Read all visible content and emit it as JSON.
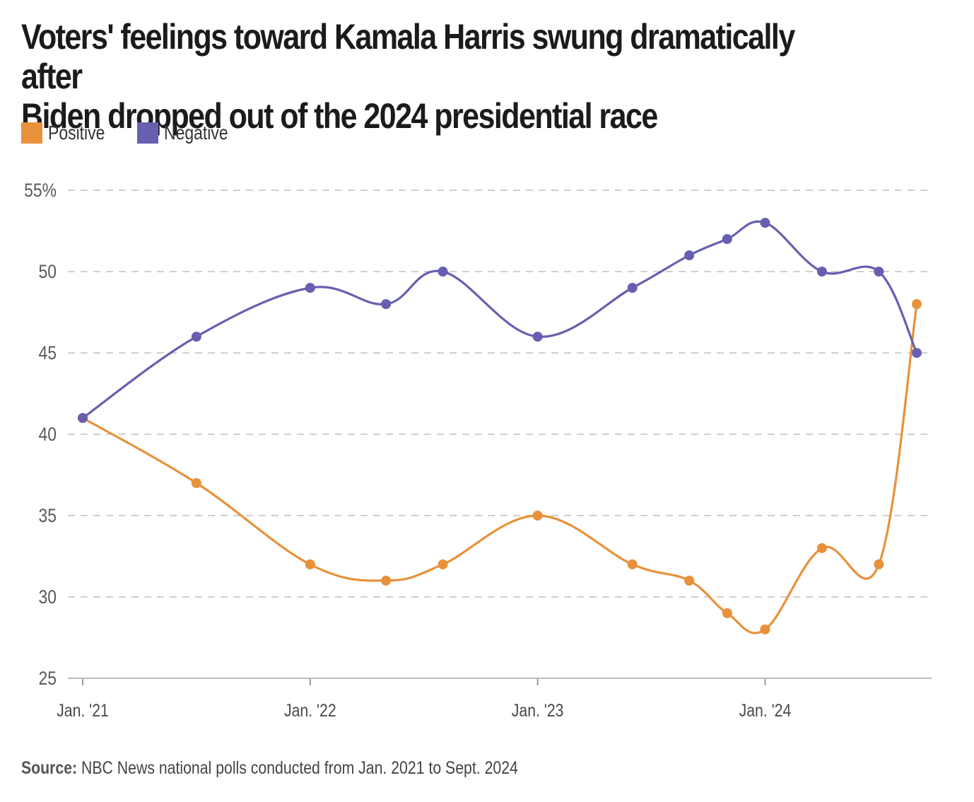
{
  "title_line1": "Voters' feelings toward Kamala Harris swung dramatically after",
  "title_line2": "Biden dropped out of the 2024 presidential race",
  "legend": [
    {
      "label": "Positive",
      "color": "#e8913a"
    },
    {
      "label": "Negative",
      "color": "#675fb0"
    }
  ],
  "source_label": "Source:",
  "source_text": "NBC News national polls conducted from Jan. 2021 to Sept. 2024",
  "chart_data": {
    "type": "line",
    "x_axis": "date",
    "x_ticks": [
      "Jan. '21",
      "Jan. '22",
      "Jan. '23",
      "Jan. '24"
    ],
    "x_tick_values": [
      "2021-01",
      "2022-01",
      "2023-01",
      "2024-01"
    ],
    "x_range": [
      "2021-01",
      "2024-09"
    ],
    "y_ticks": [
      "25",
      "30",
      "35",
      "40",
      "45",
      "50",
      "55%"
    ],
    "y_tick_values": [
      25,
      30,
      35,
      40,
      45,
      50,
      55
    ],
    "ylim": [
      25,
      55
    ],
    "grid": true,
    "legend_position": "top-left",
    "x": [
      "2021-01",
      "2021-07",
      "2022-01",
      "2022-05",
      "2022-08",
      "2023-01",
      "2023-06",
      "2023-09",
      "2023-11",
      "2024-01",
      "2024-04",
      "2024-07",
      "2024-09"
    ],
    "series": [
      {
        "name": "Positive",
        "color": "#e8913a",
        "values": [
          41,
          37,
          32,
          31,
          32,
          35,
          32,
          31,
          29,
          28,
          33,
          32,
          48
        ]
      },
      {
        "name": "Negative",
        "color": "#675fb0",
        "values": [
          41,
          46,
          49,
          48,
          50,
          46,
          49,
          51,
          52,
          53,
          50,
          50,
          45
        ]
      }
    ]
  }
}
